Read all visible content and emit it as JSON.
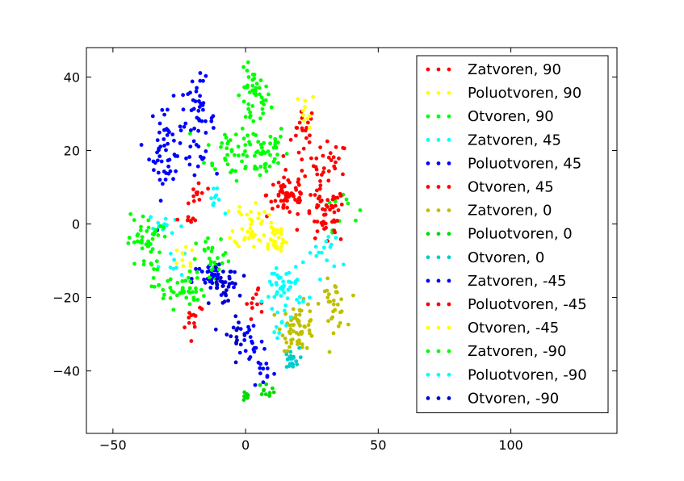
{
  "chart_data": {
    "type": "scatter",
    "title": "",
    "xlabel": "",
    "ylabel": "",
    "xlim": [
      -60,
      140
    ],
    "ylim": [
      -57,
      48
    ],
    "xticks": [
      -50,
      0,
      50,
      100
    ],
    "yticks": [
      -40,
      -20,
      0,
      20,
      40
    ],
    "xtick_labels": [
      "−50",
      "0",
      "50",
      "100"
    ],
    "ytick_labels": [
      "−40",
      "−20",
      "0",
      "20",
      "40"
    ],
    "grid": false,
    "legend_position": "upper-right",
    "series": [
      {
        "name": "Zatvoren, 90",
        "color": "#ff0000",
        "clusters": [
          {
            "center": [
              22,
              25
            ],
            "spread": [
              3,
              5
            ],
            "count": 22
          },
          {
            "center": [
              32,
              16
            ],
            "spread": [
              4,
              4
            ],
            "count": 25
          }
        ]
      },
      {
        "name": "Poluotvoren, 90",
        "color": "#ffff00",
        "clusters": [
          {
            "center": [
              23,
              31
            ],
            "spread": [
              2,
              3
            ],
            "count": 10
          }
        ]
      },
      {
        "name": "Otvoren, 90",
        "color": "#00ff00",
        "clusters": [
          {
            "center": [
              3,
              34
            ],
            "spread": [
              4,
              5
            ],
            "count": 45
          },
          {
            "center": [
              5,
              20
            ],
            "spread": [
              7,
              5
            ],
            "count": 55
          },
          {
            "center": [
              -7,
              20
            ],
            "spread": [
              5,
              5
            ],
            "count": 25
          },
          {
            "center": [
              36,
              5
            ],
            "spread": [
              4,
              4
            ],
            "count": 10
          }
        ]
      },
      {
        "name": "Zatvoren, 45",
        "color": "#00ffff",
        "clusters": [
          {
            "center": [
              -12,
              6
            ],
            "spread": [
              2,
              2
            ],
            "count": 10
          },
          {
            "center": [
              -30,
              0
            ],
            "spread": [
              4,
              2
            ],
            "count": 12
          },
          {
            "center": [
              -28,
              -10
            ],
            "spread": [
              3,
              3
            ],
            "count": 8
          }
        ]
      },
      {
        "name": "Poluotvoren, 45",
        "color": "#0000ff",
        "clusters": [
          {
            "center": [
              -30,
              20
            ],
            "spread": [
              4,
              8
            ],
            "count": 55
          },
          {
            "center": [
              -18,
              28
            ],
            "spread": [
              4,
              7
            ],
            "count": 50
          }
        ]
      },
      {
        "name": "Otvoren, 45",
        "color": "#ff0000",
        "clusters": [
          {
            "center": [
              16,
              8
            ],
            "spread": [
              5,
              4
            ],
            "count": 60
          },
          {
            "center": [
              30,
              2
            ],
            "spread": [
              5,
              5
            ],
            "count": 55
          },
          {
            "center": [
              -18,
              8
            ],
            "spread": [
              2,
              3
            ],
            "count": 12
          }
        ]
      },
      {
        "name": "Zatvoren, 0",
        "color": "#bfbf00",
        "clusters": [
          {
            "center": [
              20,
              -28
            ],
            "spread": [
              4,
              4
            ],
            "count": 60
          },
          {
            "center": [
              33,
              -22
            ],
            "spread": [
              3,
              4
            ],
            "count": 30
          }
        ]
      },
      {
        "name": "Poluotvoren, 0",
        "color": "#00dd00",
        "clusters": [
          {
            "center": [
              0,
              -47
            ],
            "spread": [
              1,
              1
            ],
            "count": 8
          },
          {
            "center": [
              8,
              -45
            ],
            "spread": [
              2,
              1
            ],
            "count": 10
          }
        ]
      },
      {
        "name": "Otvoren, 0",
        "color": "#00cccc",
        "clusters": [
          {
            "center": [
              17,
              -37
            ],
            "spread": [
              2,
              2
            ],
            "count": 20
          }
        ]
      },
      {
        "name": "Zatvoren, -45",
        "color": "#0000ff",
        "clusters": [
          {
            "center": [
              -12,
              -15
            ],
            "spread": [
              5,
              3
            ],
            "count": 40
          },
          {
            "center": [
              2,
              -32
            ],
            "spread": [
              3,
              4
            ],
            "count": 20
          },
          {
            "center": [
              7,
              -40
            ],
            "spread": [
              3,
              3
            ],
            "count": 12
          }
        ]
      },
      {
        "name": "Poluotvoren, -45",
        "color": "#ff0000",
        "clusters": [
          {
            "center": [
              -20,
              -25
            ],
            "spread": [
              3,
              3
            ],
            "count": 12
          },
          {
            "center": [
              5,
              -22
            ],
            "spread": [
              3,
              3
            ],
            "count": 12
          },
          {
            "center": [
              -21,
              1
            ],
            "spread": [
              2,
              1
            ],
            "count": 6
          }
        ]
      },
      {
        "name": "Otvoren, -45",
        "color": "#ffff00",
        "clusters": [
          {
            "center": [
              2,
              0
            ],
            "spread": [
              4,
              4
            ],
            "count": 40
          },
          {
            "center": [
              11,
              -4
            ],
            "spread": [
              3,
              3
            ],
            "count": 30
          },
          {
            "center": [
              -24,
              -10
            ],
            "spread": [
              3,
              2
            ],
            "count": 12
          }
        ]
      },
      {
        "name": "Zatvoren, -90",
        "color": "#00ff00",
        "clusters": [
          {
            "center": [
              -38,
              -5
            ],
            "spread": [
              4,
              5
            ],
            "count": 45
          },
          {
            "center": [
              -25,
              -18
            ],
            "spread": [
              6,
              3
            ],
            "count": 45
          },
          {
            "center": [
              -12,
              -10
            ],
            "spread": [
              4,
              4
            ],
            "count": 25
          }
        ]
      },
      {
        "name": "Poluotvoren, -90",
        "color": "#00ffff",
        "clusters": [
          {
            "center": [
              15,
              -17
            ],
            "spread": [
              5,
              4
            ],
            "count": 45
          },
          {
            "center": [
              30,
              -8
            ],
            "spread": [
              4,
              4
            ],
            "count": 15
          },
          {
            "center": [
              13,
              -26
            ],
            "spread": [
              2,
              3
            ],
            "count": 10
          }
        ]
      },
      {
        "name": "Otvoren, -90",
        "color": "#0000cc",
        "clusters": [
          {
            "center": [
              -9,
              -17
            ],
            "spread": [
              4,
              3
            ],
            "count": 30
          },
          {
            "center": [
              -4,
              -30
            ],
            "spread": [
              3,
              4
            ],
            "count": 15
          }
        ]
      }
    ]
  }
}
